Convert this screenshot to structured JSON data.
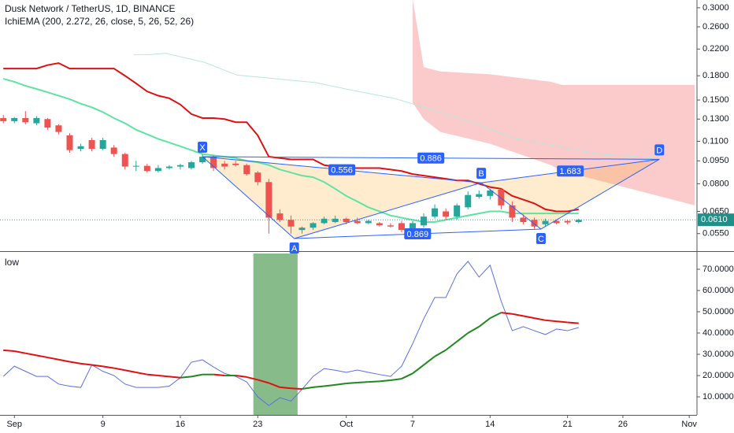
{
  "chart_data": {
    "type": "candlestick",
    "title": "Dusk Network / TetherUS, 1D, BINANCE",
    "subtitle": "IchiEMA (200, 2.272, 26, close, 5, 26, 52, 26)",
    "log_scale": true,
    "xlim": [
      -1.3,
      61.7
    ],
    "ylim": [
      0.0485,
      0.318
    ],
    "xticks": [
      {
        "value": 0,
        "label": "Sep"
      },
      {
        "value": 8,
        "label": "9"
      },
      {
        "value": 15,
        "label": "16"
      },
      {
        "value": 22,
        "label": "23"
      },
      {
        "value": 30,
        "label": "Oct"
      },
      {
        "value": 36,
        "label": "7"
      },
      {
        "value": 43,
        "label": "14"
      },
      {
        "value": 50,
        "label": "21"
      },
      {
        "value": 55,
        "label": "26"
      },
      {
        "value": 61,
        "label": "Nov"
      }
    ],
    "yticks": [
      {
        "value": 0.3,
        "label": "0.3000"
      },
      {
        "value": 0.26,
        "label": "0.2600"
      },
      {
        "value": 0.22,
        "label": "0.2200"
      },
      {
        "value": 0.18,
        "label": "0.1800"
      },
      {
        "value": 0.15,
        "label": "0.1500"
      },
      {
        "value": 0.13,
        "label": "0.1300"
      },
      {
        "value": 0.11,
        "label": "0.1100"
      },
      {
        "value": 0.095,
        "label": "0.0950"
      },
      {
        "value": 0.08,
        "label": "0.0800"
      },
      {
        "value": 0.065,
        "label": "0.0650"
      },
      {
        "value": 0.055,
        "label": "0.0550"
      }
    ],
    "up_color": "#26a69a",
    "down_color": "#ef5350",
    "last_price": {
      "value": 0.061,
      "label": "0.0610"
    },
    "x": [
      -1,
      0,
      1,
      2,
      3,
      4,
      5,
      6,
      7,
      8,
      9,
      10,
      11,
      12,
      13,
      14,
      15,
      16,
      17,
      18,
      19,
      20,
      21,
      22,
      23,
      24,
      25,
      26,
      27,
      28,
      29,
      30,
      31,
      32,
      33,
      34,
      35,
      36,
      37,
      38,
      39,
      40,
      41,
      42,
      43,
      44,
      45,
      46,
      47,
      48,
      49,
      50,
      51
    ],
    "open": [
      0.131,
      0.128,
      0.131,
      0.126,
      0.13,
      0.124,
      0.115,
      0.104,
      0.111,
      0.104,
      0.105,
      0.1,
      0.091,
      0.0915,
      0.088,
      0.09,
      0.091,
      0.09,
      0.094,
      0.098,
      0.093,
      0.093,
      0.092,
      0.087,
      0.081,
      0.064,
      0.061,
      0.0565,
      0.0575,
      0.0595,
      0.06,
      0.0615,
      0.0605,
      0.0595,
      0.0595,
      0.0585,
      0.0595,
      0.057,
      0.0585,
      0.0625,
      0.065,
      0.0625,
      0.067,
      0.0725,
      0.073,
      0.0765,
      0.068,
      0.062,
      0.061,
      0.059,
      0.0605,
      0.0605,
      0.06
    ],
    "high": [
      0.134,
      0.132,
      0.138,
      0.133,
      0.131,
      0.125,
      0.117,
      0.108,
      0.113,
      0.113,
      0.107,
      0.101,
      0.095,
      0.093,
      0.092,
      0.092,
      0.093,
      0.095,
      0.1,
      0.099,
      0.095,
      0.095,
      0.093,
      0.088,
      0.083,
      0.066,
      0.063,
      0.058,
      0.06,
      0.0625,
      0.063,
      0.062,
      0.062,
      0.061,
      0.06,
      0.0595,
      0.0605,
      0.0605,
      0.064,
      0.0685,
      0.0665,
      0.069,
      0.0755,
      0.076,
      0.077,
      0.077,
      0.07,
      0.0635,
      0.062,
      0.0615,
      0.061,
      0.061,
      0.0615
    ],
    "low": [
      0.126,
      0.126,
      0.125,
      0.124,
      0.12,
      0.116,
      0.101,
      0.102,
      0.102,
      0.103,
      0.098,
      0.089,
      0.088,
      0.087,
      0.087,
      0.089,
      0.089,
      0.089,
      0.093,
      0.088,
      0.089,
      0.091,
      0.085,
      0.079,
      0.055,
      0.06,
      0.055,
      0.055,
      0.0565,
      0.059,
      0.0595,
      0.059,
      0.059,
      0.059,
      0.058,
      0.0575,
      0.0555,
      0.0565,
      0.0575,
      0.0615,
      0.061,
      0.061,
      0.066,
      0.0715,
      0.071,
      0.066,
      0.06,
      0.059,
      0.057,
      0.058,
      0.059,
      0.059,
      0.0595
    ],
    "close": [
      0.128,
      0.131,
      0.127,
      0.131,
      0.122,
      0.118,
      0.103,
      0.106,
      0.104,
      0.111,
      0.1,
      0.091,
      0.0915,
      0.088,
      0.09,
      0.091,
      0.092,
      0.094,
      0.098,
      0.09,
      0.091,
      0.092,
      0.086,
      0.081,
      0.062,
      0.061,
      0.058,
      0.0575,
      0.0595,
      0.0615,
      0.0615,
      0.06,
      0.0595,
      0.0605,
      0.0585,
      0.058,
      0.0565,
      0.0595,
      0.0625,
      0.0665,
      0.0625,
      0.068,
      0.0735,
      0.074,
      0.076,
      0.068,
      0.062,
      0.06,
      0.058,
      0.0605,
      0.0595,
      0.0598,
      0.061
    ],
    "lines": [
      {
        "color": "#e01010",
        "width": 2,
        "x": [
          -1,
          0,
          1,
          2,
          3,
          4,
          5,
          6,
          7,
          8,
          9,
          10,
          11,
          12,
          13,
          14,
          15,
          16,
          17,
          18,
          19,
          20,
          21,
          22,
          23,
          24,
          25,
          26,
          27,
          28,
          29,
          30,
          31,
          32,
          33,
          34,
          35,
          36,
          37,
          38,
          39,
          40,
          41,
          42,
          43,
          44,
          45,
          46,
          47,
          48,
          49,
          50,
          51
        ],
        "values": [
          0.19,
          0.19,
          0.19,
          0.19,
          0.195,
          0.198,
          0.19,
          0.19,
          0.19,
          0.19,
          0.19,
          0.18,
          0.17,
          0.16,
          0.155,
          0.152,
          0.145,
          0.135,
          0.131,
          0.131,
          0.13,
          0.127,
          0.127,
          0.115,
          0.098,
          0.097,
          0.096,
          0.096,
          0.096,
          0.092,
          0.091,
          0.09,
          0.09,
          0.09,
          0.09,
          0.089,
          0.088,
          0.086,
          0.085,
          0.084,
          0.083,
          0.082,
          0.082,
          0.08,
          0.078,
          0.077,
          0.073,
          0.071,
          0.069,
          0.066,
          0.065,
          0.065,
          0.066
        ]
      },
      {
        "color": "#5ee3a1",
        "width": 2,
        "x": [
          -1,
          0,
          1,
          2,
          3,
          4,
          5,
          6,
          7,
          8,
          9,
          10,
          11,
          12,
          13,
          14,
          15,
          16,
          17,
          18,
          19,
          20,
          21,
          22,
          23,
          24,
          25,
          26,
          27,
          28,
          29,
          30,
          31,
          32,
          33,
          34,
          35,
          36,
          37,
          38,
          39,
          40,
          41,
          42,
          43,
          44,
          45,
          46,
          47,
          48,
          49,
          50,
          51
        ],
        "values": [
          0.176,
          0.172,
          0.167,
          0.163,
          0.159,
          0.155,
          0.151,
          0.146,
          0.142,
          0.137,
          0.131,
          0.126,
          0.12,
          0.116,
          0.112,
          0.109,
          0.106,
          0.103,
          0.1,
          0.099,
          0.098,
          0.097,
          0.095,
          0.094,
          0.092,
          0.089,
          0.087,
          0.085,
          0.084,
          0.081,
          0.077,
          0.073,
          0.07,
          0.067,
          0.065,
          0.063,
          0.062,
          0.061,
          0.06,
          0.06,
          0.061,
          0.062,
          0.063,
          0.064,
          0.065,
          0.065,
          0.064,
          0.064,
          0.064,
          0.064,
          0.064,
          0.064,
          0.064
        ]
      },
      {
        "color": "#b8e6dd",
        "width": 1,
        "x": [
          10.8,
          12.2,
          13.7,
          17.2,
          20.1,
          23.6,
          27.2,
          30.7,
          34.3,
          37.9,
          41.4,
          45,
          48.5,
          52.8,
          57.8
        ],
        "values": [
          0.211,
          0.211,
          0.213,
          0.199,
          0.181,
          0.176,
          0.171,
          0.161,
          0.152,
          0.139,
          0.127,
          0.113,
          0.107,
          0.1,
          0.097
        ]
      }
    ],
    "cloud": {
      "color": "rgba(239,83,80,0.3)",
      "x": [
        36,
        37,
        38.5,
        43,
        48.5,
        49.5,
        61.5
      ],
      "upper": [
        0.32,
        0.192,
        0.186,
        0.182,
        0.172,
        0.168,
        0.168
      ],
      "lower": [
        0.147,
        0.13,
        0.118,
        0.108,
        0.092,
        0.088,
        0.068
      ]
    },
    "pattern": {
      "color": "#2962ff",
      "fill": "rgba(255,167,38,0.22)",
      "points": [
        {
          "label": "X",
          "x": 17,
          "y": 0.098
        },
        {
          "label": "A",
          "x": 25.3,
          "y": 0.053
        },
        {
          "label": "B",
          "x": 42.2,
          "y": 0.0806
        },
        {
          "label": "C",
          "x": 47.6,
          "y": 0.0569
        },
        {
          "label": "D",
          "x": 58.3,
          "y": 0.0961
        }
      ],
      "ratios": {
        "XB": "0.556",
        "AC": "0.869",
        "BD": "1.683",
        "XD": "0.886"
      }
    },
    "indicator": {
      "title": "low",
      "ylim": [
        1.5,
        77.4
      ],
      "yticks": [
        {
          "value": 70,
          "label": "70.0000"
        },
        {
          "value": 60,
          "label": "60.0000"
        },
        {
          "value": 50,
          "label": "50.0000"
        },
        {
          "value": 40,
          "label": "40.0000"
        },
        {
          "value": 30,
          "label": "30.0000"
        },
        {
          "value": 20,
          "label": "20.0000"
        },
        {
          "value": 10,
          "label": "10.0000"
        }
      ],
      "highlight": {
        "color": "rgba(56,142,60,0.6)",
        "x": [
          21.6,
          25.6
        ]
      },
      "x": [
        -1,
        0,
        1,
        2,
        3,
        4,
        5,
        6,
        7,
        8,
        9,
        10,
        11,
        12,
        13,
        14,
        15,
        16,
        17,
        18,
        19,
        20,
        21,
        22,
        23,
        24,
        25,
        26,
        27,
        28,
        29,
        30,
        31,
        32,
        33,
        34,
        35,
        36,
        37,
        38,
        39,
        40,
        41,
        42,
        43,
        44,
        45,
        46,
        47,
        48,
        49,
        50,
        51
      ],
      "low": {
        "color": "#5b6ee1",
        "values": [
          19.6,
          24.4,
          22,
          19.6,
          19.6,
          16,
          15,
          14.4,
          25,
          22,
          20,
          16,
          14.4,
          14.4,
          14.4,
          15,
          19,
          26.3,
          27.4,
          24,
          21,
          19.6,
          17,
          10,
          5.9,
          9.6,
          8,
          13.5,
          19.6,
          23.3,
          22.5,
          21.5,
          22.6,
          21.5,
          20.5,
          19.6,
          24.4,
          35,
          46.7,
          56.7,
          56.7,
          67.8,
          73.7,
          66.3,
          71.9,
          55,
          41.1,
          43,
          41.1,
          39.3,
          41.9,
          41.1,
          42.6
        ]
      },
      "average": {
        "up_color": "#1e8a1e",
        "down_color": "#e01010",
        "values": [
          31.9,
          31.5,
          30.5,
          29.5,
          28.5,
          27.5,
          26.5,
          25.6,
          25,
          24.3,
          23.5,
          22.5,
          21.5,
          20.5,
          20,
          19.5,
          19,
          19.5,
          20.5,
          20.5,
          20,
          20,
          19.3,
          18,
          16.5,
          14.5,
          14,
          13.7,
          14.5,
          15,
          15.6,
          16.3,
          16.7,
          17,
          17.3,
          17.8,
          18.5,
          21,
          25,
          29,
          32,
          36,
          40,
          43,
          47,
          49.6,
          49,
          48,
          47,
          46,
          45.5,
          45,
          44.6
        ]
      }
    }
  }
}
